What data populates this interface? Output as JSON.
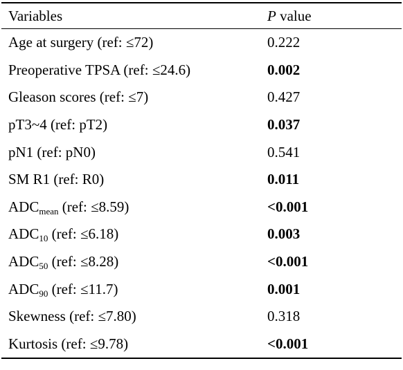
{
  "header": {
    "variables_label": "Variables",
    "p_label": "P",
    "value_label": " value"
  },
  "rows": [
    {
      "name_main": "Age at surgery (ref: ≤72)",
      "name_sub": "",
      "name_rest": "",
      "p": "0.222",
      "significant": false
    },
    {
      "name_main": "Preoperative TPSA (ref: ≤24.6)",
      "name_sub": "",
      "name_rest": "",
      "p": "0.002",
      "significant": true
    },
    {
      "name_main": "Gleason scores (ref: ≤7)",
      "name_sub": "",
      "name_rest": "",
      "p": "0.427",
      "significant": false
    },
    {
      "name_main": "pT3~4 (ref: pT2)",
      "name_sub": "",
      "name_rest": "",
      "p": "0.037",
      "significant": true
    },
    {
      "name_main": "pN1 (ref: pN0)",
      "name_sub": "",
      "name_rest": "",
      "p": "0.541",
      "significant": false
    },
    {
      "name_main": "SM R1 (ref: R0)",
      "name_sub": "",
      "name_rest": "",
      "p": "0.011",
      "significant": true
    },
    {
      "name_main": "ADC",
      "name_sub": "mean",
      "name_rest": " (ref: ≤8.59)",
      "p": "<0.001",
      "significant": true
    },
    {
      "name_main": "ADC",
      "name_sub": "10",
      "name_rest": " (ref: ≤6.18)",
      "p": "0.003",
      "significant": true
    },
    {
      "name_main": "ADC",
      "name_sub": "50",
      "name_rest": " (ref: ≤8.28)",
      "p": "<0.001",
      "significant": true
    },
    {
      "name_main": "ADC",
      "name_sub": "90",
      "name_rest": " (ref: ≤11.7)",
      "p": "0.001",
      "significant": true
    },
    {
      "name_main": "Skewness (ref: ≤7.80)",
      "name_sub": "",
      "name_rest": "",
      "p": "0.318",
      "significant": false
    },
    {
      "name_main": "Kurtosis (ref: ≤9.78)",
      "name_sub": "",
      "name_rest": "",
      "p": "<0.001",
      "significant": true
    }
  ]
}
